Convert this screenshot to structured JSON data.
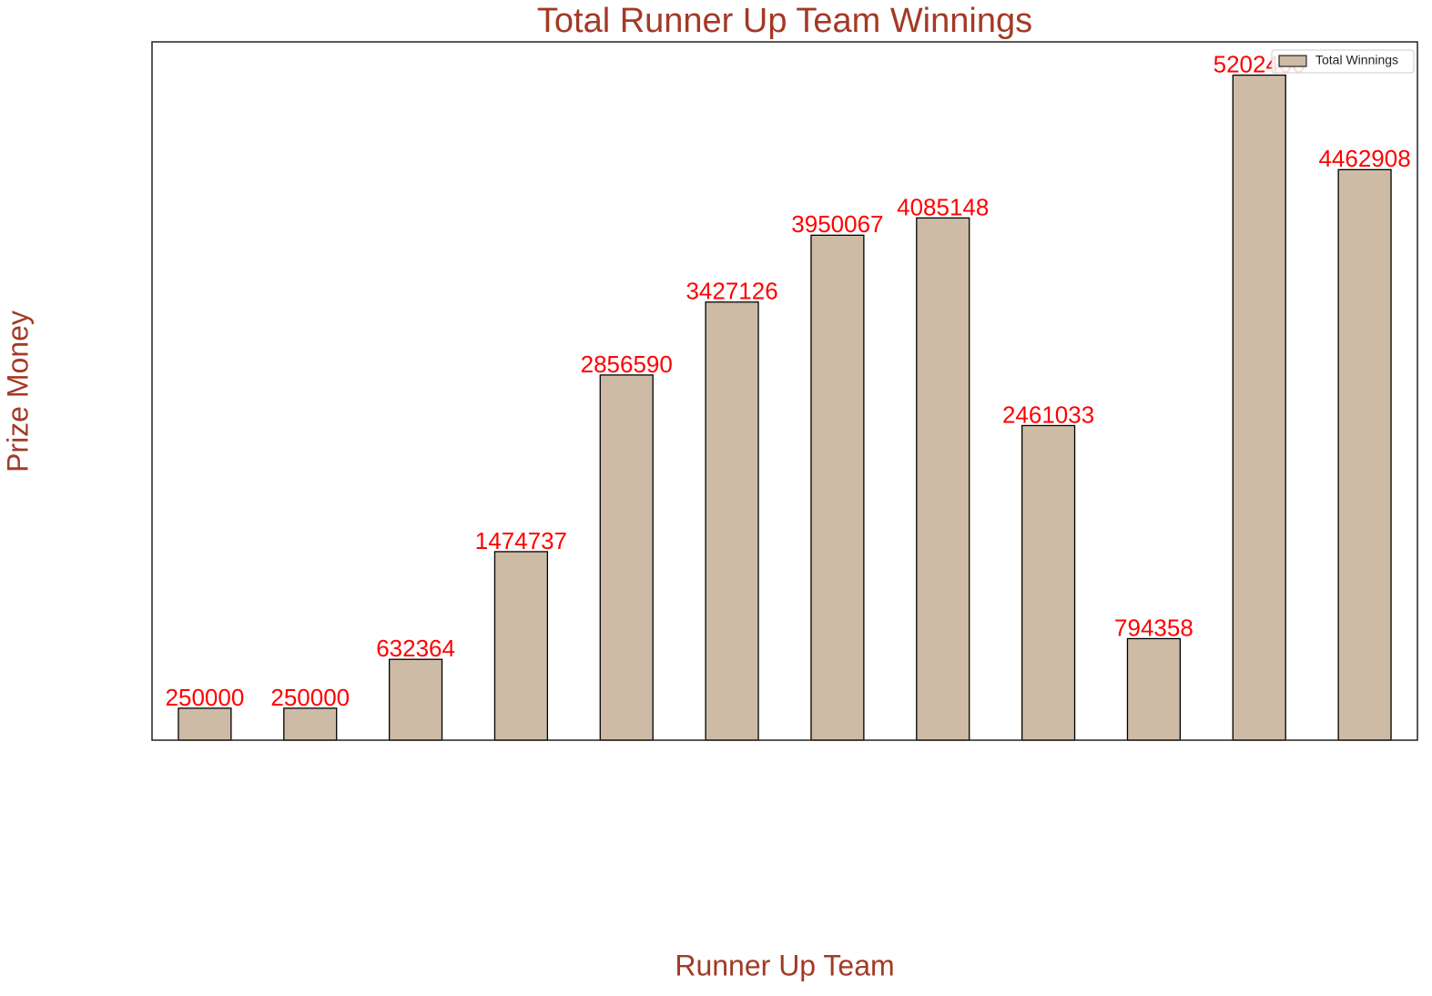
{
  "chart_data": {
    "type": "bar",
    "title": "Total Runner Up Team Winnings",
    "xlabel": "Runner Up Team",
    "ylabel": "Prize Money",
    "categories": [
      null,
      null,
      null,
      null,
      null,
      null,
      null,
      null,
      null,
      null,
      null,
      null
    ],
    "series": [
      {
        "name": "Total Winnings",
        "color": "#cdbba5",
        "values": [
          250000,
          250000,
          632364,
          1474737,
          2856590,
          3427126,
          3950067,
          4085148,
          2461033,
          794358,
          5202400,
          4462908
        ]
      }
    ],
    "ylim": [
      0,
      5462520
    ],
    "legend": "upper right"
  }
}
